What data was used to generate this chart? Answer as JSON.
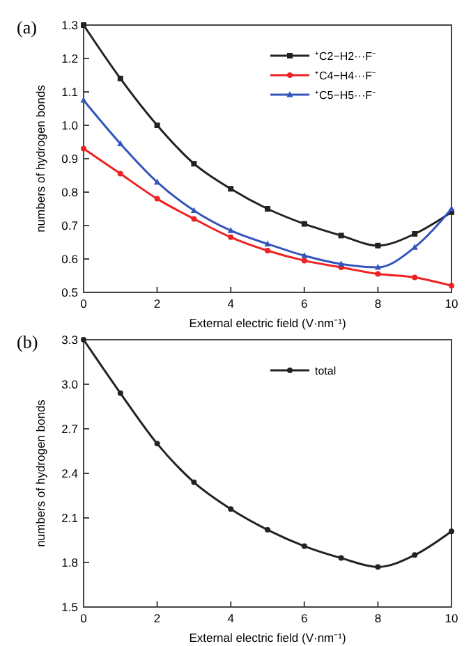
{
  "chart_data": [
    {
      "type": "line",
      "title": "(a)",
      "xlabel": "External electric field (V·nm⁻¹)",
      "ylabel": "numbers of hydrogen bonds",
      "x": [
        0,
        1,
        2,
        3,
        4,
        5,
        6,
        7,
        8,
        9,
        10
      ],
      "xlim": [
        0,
        10
      ],
      "xticks": [
        0,
        2,
        4,
        6,
        8,
        10
      ],
      "ylim": [
        0.5,
        1.3
      ],
      "yticks": [
        {
          "value": 0.5,
          "label": "0.5"
        },
        {
          "value": 0.6,
          "label": "0.6"
        },
        {
          "value": 0.7,
          "label": "0.7"
        },
        {
          "value": 0.8,
          "label": "0.8"
        },
        {
          "value": 0.9,
          "label": "0.9"
        },
        {
          "value": 1,
          "label": "1.0"
        },
        {
          "value": 1.1,
          "label": "1.1"
        },
        {
          "value": 1.2,
          "label": "1.2"
        },
        {
          "value": 1.3,
          "label": "1.3"
        }
      ],
      "legend": "top right",
      "grid": false,
      "series": [
        {
          "name": "⁺C2−H2···F⁻",
          "color": "#222222",
          "marker": "square",
          "values": [
            1.3,
            1.14,
            1.0,
            0.885,
            0.81,
            0.75,
            0.705,
            0.67,
            0.64,
            0.675,
            0.74
          ]
        },
        {
          "name": "⁺C4−H4···F⁻",
          "color": "#ee2222",
          "marker": "circle",
          "values": [
            0.93,
            0.855,
            0.78,
            0.72,
            0.665,
            0.625,
            0.595,
            0.575,
            0.555,
            0.545,
            0.52
          ]
        },
        {
          "name": "⁺C5−H5···F⁻",
          "color": "#3355bb",
          "marker": "triangle",
          "values": [
            1.075,
            0.945,
            0.83,
            0.745,
            0.685,
            0.645,
            0.61,
            0.585,
            0.575,
            0.635,
            0.75
          ]
        }
      ]
    },
    {
      "type": "line",
      "title": "(b)",
      "xlabel": "External electric field (V·nm⁻¹)",
      "ylabel": "numbers of hydrogen bonds",
      "x": [
        0,
        1,
        2,
        3,
        4,
        5,
        6,
        7,
        8,
        9,
        10
      ],
      "xlim": [
        0,
        10
      ],
      "xticks": [
        0,
        2,
        4,
        6,
        8,
        10
      ],
      "ylim": [
        1.5,
        3.3
      ],
      "yticks": [
        {
          "value": 1.5,
          "label": "1.5"
        },
        {
          "value": 1.8,
          "label": "1.8"
        },
        {
          "value": 2.1,
          "label": "2.1"
        },
        {
          "value": 2.4,
          "label": "2.4"
        },
        {
          "value": 2.7,
          "label": "2.7"
        },
        {
          "value": 3,
          "label": "3.0"
        },
        {
          "value": 3.3,
          "label": "3.3"
        }
      ],
      "legend": "top right",
      "grid": false,
      "series": [
        {
          "name": "total",
          "color": "#222222",
          "marker": "circle",
          "values": [
            3.3,
            2.94,
            2.6,
            2.34,
            2.16,
            2.02,
            1.91,
            1.83,
            1.77,
            1.85,
            2.01
          ]
        }
      ]
    }
  ]
}
